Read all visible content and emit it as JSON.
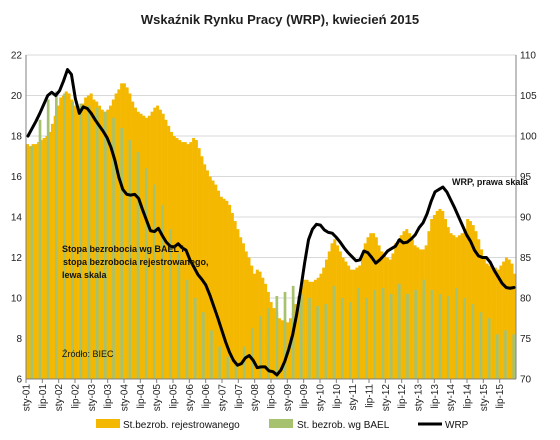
{
  "chart_data": {
    "type": "bar",
    "title": "Wskaźnik Rynku Pracy (WRP), kwiecień 2015",
    "colors": {
      "registered": "#f5b800",
      "bael": "#a7c26e",
      "wrp": "#000000",
      "grid": "#d9d9d9"
    },
    "y_left": {
      "min": 6,
      "max": 22,
      "ticks": [
        "6",
        "8",
        "10",
        "12",
        "14",
        "16",
        "18",
        "20",
        "22"
      ]
    },
    "y_right": {
      "min": 70,
      "max": 110,
      "ticks": [
        "70",
        "75",
        "80",
        "85",
        "90",
        "95",
        "100",
        "105",
        "110"
      ]
    },
    "x_ticks": [
      "sty-01",
      "lip-01",
      "sty-02",
      "lip-02",
      "sty-03",
      "lip-03",
      "sty-04",
      "lip-04",
      "sty-05",
      "lip-05",
      "sty-06",
      "lip-06",
      "sty-07",
      "lip-07",
      "sty-08",
      "lip-08",
      "sty-09",
      "lip-09",
      "sty-10",
      "lip-10",
      "sty-11",
      "lip-11",
      "sty-12",
      "lip-12",
      "sty-13",
      "lip-13",
      "sty-14",
      "lip-14",
      "sty-15",
      "lip-15"
    ],
    "series": [
      {
        "name": "St.bezrob. rejestrowanego",
        "axis": "left",
        "values": [
          17.6,
          17.5,
          17.6,
          17.6,
          17.7,
          17.8,
          17.9,
          18.0,
          18.2,
          18.6,
          19.0,
          19.5,
          19.9,
          20.0,
          20.2,
          20.1,
          19.8,
          19.5,
          19.4,
          19.3,
          19.6,
          19.9,
          20.0,
          20.1,
          19.8,
          19.7,
          19.5,
          19.3,
          19.2,
          19.3,
          19.5,
          19.8,
          20.1,
          20.3,
          20.6,
          20.6,
          20.4,
          20.1,
          19.7,
          19.4,
          19.2,
          19.1,
          19.0,
          18.9,
          19.0,
          19.2,
          19.4,
          19.5,
          19.3,
          19.1,
          18.8,
          18.5,
          18.2,
          18.0,
          17.9,
          17.8,
          17.7,
          17.7,
          17.6,
          17.7,
          17.9,
          17.8,
          17.4,
          17.0,
          16.6,
          16.3,
          16.0,
          15.8,
          15.6,
          15.3,
          15.0,
          14.9,
          14.8,
          14.6,
          14.2,
          13.8,
          13.4,
          13.0,
          12.7,
          12.3,
          12.0,
          11.6,
          11.2,
          11.4,
          11.3,
          11.0,
          10.7,
          10.3,
          9.8,
          9.5,
          9.3,
          9.0,
          8.9,
          8.9,
          8.8,
          9.0,
          9.3,
          9.7,
          10.1,
          10.6,
          10.9,
          10.9,
          10.8,
          10.8,
          10.9,
          11.0,
          11.2,
          11.5,
          11.9,
          12.3,
          12.7,
          12.9,
          12.6,
          12.3,
          12.0,
          11.8,
          11.6,
          11.4,
          11.4,
          11.5,
          11.6,
          12.1,
          12.7,
          13.0,
          13.2,
          13.2,
          13.0,
          12.6,
          12.3,
          12.1,
          12.0,
          11.9,
          12.2,
          12.7,
          12.9,
          13.1,
          13.3,
          13.4,
          13.2,
          12.9,
          12.6,
          12.5,
          12.4,
          12.4,
          12.6,
          13.3,
          13.9,
          14.1,
          14.3,
          14.4,
          14.3,
          13.9,
          13.5,
          13.2,
          13.1,
          13.0,
          13.1,
          13.2,
          13.4,
          13.9,
          13.8,
          13.6,
          13.3,
          12.9,
          12.4,
          12.0,
          11.7,
          11.6,
          11.5,
          11.5,
          11.4,
          11.6,
          11.8,
          12.0,
          11.9,
          11.7,
          11.2
        ]
      },
      {
        "name": "St. bezrob. wg BAEL",
        "axis": "left",
        "values": [
          17.5,
          18.8,
          19.8,
          20.2,
          20.1,
          19.7,
          19.6,
          19.5,
          19.4,
          19.2,
          18.9,
          18.4,
          17.8,
          17.2,
          16.4,
          15.6,
          14.6,
          13.4,
          12.2,
          10.9,
          10.0,
          9.3,
          8.4,
          7.6,
          7.1,
          6.9,
          7.6,
          8.5,
          9.1,
          9.5,
          10.1,
          10.3,
          10.6,
          10.2,
          10.0,
          9.6,
          9.7,
          10.6,
          10.0,
          9.8,
          10.5,
          10.0,
          10.4,
          10.5,
          10.2,
          10.7,
          10.2,
          10.4,
          10.9,
          10.4,
          10.2,
          10.1,
          10.5,
          10.0,
          9.7,
          9.3,
          9.0,
          8.2,
          8.4,
          8.2
        ]
      },
      {
        "name": "WRP",
        "axis": "right",
        "values": [
          100.0,
          100.9,
          101.8,
          102.8,
          103.9,
          105.0,
          105.4,
          105.0,
          105.6,
          106.8,
          108.2,
          107.6,
          104.6,
          102.8,
          103.6,
          103.4,
          102.8,
          102.0,
          101.3,
          100.6,
          99.8,
          98.6,
          97.0,
          94.9,
          93.4,
          92.8,
          92.7,
          92.8,
          92.3,
          90.9,
          89.6,
          88.3,
          88.2,
          88.6,
          87.7,
          86.9,
          86.4,
          86.3,
          86.7,
          86.2,
          85.9,
          84.7,
          83.8,
          82.9,
          82.3,
          81.6,
          80.4,
          79.0,
          77.6,
          76.1,
          74.6,
          73.3,
          72.3,
          71.7,
          71.9,
          72.6,
          72.9,
          72.3,
          71.4,
          71.5,
          71.5,
          71.0,
          70.9,
          70.5,
          71.1,
          72.2,
          73.7,
          75.5,
          78.0,
          81.0,
          84.3,
          87.2,
          88.5,
          89.1,
          89.0,
          88.4,
          88.1,
          88.0,
          87.5,
          86.9,
          86.2,
          85.6,
          85.1,
          84.6,
          84.7,
          85.8,
          85.6,
          85.0,
          84.3,
          84.7,
          85.2,
          85.8,
          86.1,
          86.4,
          87.2,
          86.8,
          86.9,
          87.3,
          87.8,
          88.7,
          89.3,
          90.4,
          91.9,
          93.1,
          93.4,
          93.7,
          93.1,
          92.1,
          91.1,
          90.0,
          88.9,
          87.8,
          87.0,
          85.9,
          85.2,
          85.0,
          85.0,
          84.4,
          83.4,
          82.6,
          81.8,
          81.3,
          81.2,
          81.3
        ]
      }
    ],
    "annotations": [
      {
        "id": "left_scale",
        "lines": [
          "Stopa bezrobocia wg BAEL i",
          " stopa bezrobocia rejestrowanego,",
          "lewa skala"
        ]
      },
      {
        "id": "right_scale",
        "lines": [
          "WRP, prawa skala"
        ]
      }
    ],
    "source": "Źródło: BIEC"
  }
}
